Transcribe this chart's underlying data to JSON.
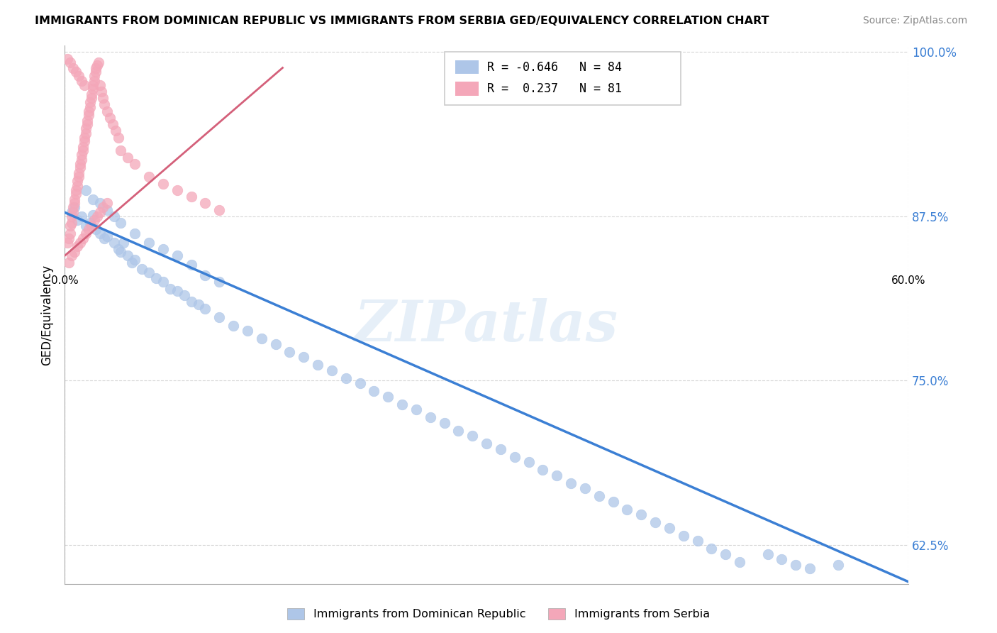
{
  "title": "IMMIGRANTS FROM DOMINICAN REPUBLIC VS IMMIGRANTS FROM SERBIA GED/EQUIVALENCY CORRELATION CHART",
  "source": "Source: ZipAtlas.com",
  "ylabel": "GED/Equivalency",
  "xmin": 0.0,
  "xmax": 0.6,
  "ymin": 0.595,
  "ymax": 1.005,
  "yticks": [
    0.625,
    0.75,
    0.875,
    1.0
  ],
  "ytick_labels": [
    "62.5%",
    "75.0%",
    "87.5%",
    "100.0%"
  ],
  "xtick_labels": [
    "0.0%",
    "60.0%"
  ],
  "blue_line_color": "#3b7fd4",
  "pink_line_color": "#d4607a",
  "blue_line_x": [
    0.0,
    0.6
  ],
  "blue_line_y": [
    0.878,
    0.597
  ],
  "pink_line_x": [
    0.0,
    0.155
  ],
  "pink_line_y": [
    0.845,
    0.988
  ],
  "watermark": "ZIPatlas",
  "blue_scatter_color": "#aec6e8",
  "pink_scatter_color": "#f4a7b9",
  "blue_scatter_x": [
    0.005,
    0.007,
    0.009,
    0.012,
    0.015,
    0.018,
    0.02,
    0.022,
    0.025,
    0.028,
    0.03,
    0.035,
    0.038,
    0.04,
    0.042,
    0.045,
    0.048,
    0.05,
    0.055,
    0.06,
    0.065,
    0.07,
    0.075,
    0.08,
    0.085,
    0.09,
    0.095,
    0.1,
    0.11,
    0.12,
    0.13,
    0.14,
    0.15,
    0.16,
    0.17,
    0.18,
    0.19,
    0.2,
    0.21,
    0.22,
    0.23,
    0.24,
    0.25,
    0.26,
    0.27,
    0.28,
    0.29,
    0.3,
    0.31,
    0.32,
    0.33,
    0.34,
    0.35,
    0.36,
    0.37,
    0.38,
    0.39,
    0.4,
    0.41,
    0.42,
    0.43,
    0.44,
    0.45,
    0.46,
    0.47,
    0.48,
    0.5,
    0.51,
    0.52,
    0.53,
    0.55,
    0.015,
    0.02,
    0.025,
    0.03,
    0.035,
    0.04,
    0.05,
    0.06,
    0.07,
    0.08,
    0.09,
    0.1,
    0.11
  ],
  "blue_scatter_y": [
    0.878,
    0.882,
    0.872,
    0.875,
    0.868,
    0.87,
    0.876,
    0.865,
    0.862,
    0.858,
    0.86,
    0.855,
    0.85,
    0.848,
    0.855,
    0.845,
    0.84,
    0.842,
    0.835,
    0.832,
    0.828,
    0.825,
    0.82,
    0.818,
    0.815,
    0.81,
    0.808,
    0.805,
    0.798,
    0.792,
    0.788,
    0.782,
    0.778,
    0.772,
    0.768,
    0.762,
    0.758,
    0.752,
    0.748,
    0.742,
    0.738,
    0.732,
    0.728,
    0.722,
    0.718,
    0.712,
    0.708,
    0.702,
    0.698,
    0.692,
    0.688,
    0.682,
    0.678,
    0.672,
    0.668,
    0.662,
    0.658,
    0.652,
    0.648,
    0.642,
    0.638,
    0.632,
    0.628,
    0.622,
    0.618,
    0.612,
    0.618,
    0.614,
    0.61,
    0.607,
    0.61,
    0.895,
    0.888,
    0.885,
    0.88,
    0.875,
    0.87,
    0.862,
    0.855,
    0.85,
    0.845,
    0.838,
    0.83,
    0.825
  ],
  "pink_scatter_x": [
    0.002,
    0.003,
    0.004,
    0.004,
    0.005,
    0.005,
    0.006,
    0.006,
    0.007,
    0.007,
    0.008,
    0.008,
    0.009,
    0.009,
    0.01,
    0.01,
    0.011,
    0.011,
    0.012,
    0.012,
    0.013,
    0.013,
    0.014,
    0.014,
    0.015,
    0.015,
    0.016,
    0.016,
    0.017,
    0.017,
    0.018,
    0.018,
    0.019,
    0.019,
    0.02,
    0.02,
    0.021,
    0.021,
    0.022,
    0.022,
    0.023,
    0.024,
    0.025,
    0.026,
    0.027,
    0.028,
    0.03,
    0.032,
    0.034,
    0.036,
    0.038,
    0.04,
    0.045,
    0.05,
    0.06,
    0.07,
    0.08,
    0.09,
    0.1,
    0.11,
    0.003,
    0.005,
    0.007,
    0.009,
    0.011,
    0.013,
    0.015,
    0.017,
    0.019,
    0.021,
    0.023,
    0.025,
    0.027,
    0.03,
    0.002,
    0.004,
    0.006,
    0.008,
    0.01,
    0.012,
    0.014
  ],
  "pink_scatter_y": [
    0.855,
    0.858,
    0.862,
    0.868,
    0.87,
    0.875,
    0.878,
    0.882,
    0.885,
    0.888,
    0.892,
    0.895,
    0.898,
    0.902,
    0.905,
    0.908,
    0.912,
    0.915,
    0.918,
    0.922,
    0.925,
    0.928,
    0.932,
    0.935,
    0.938,
    0.942,
    0.945,
    0.948,
    0.952,
    0.955,
    0.958,
    0.962,
    0.965,
    0.968,
    0.972,
    0.975,
    0.978,
    0.982,
    0.985,
    0.988,
    0.99,
    0.992,
    0.975,
    0.97,
    0.965,
    0.96,
    0.955,
    0.95,
    0.945,
    0.94,
    0.935,
    0.925,
    0.92,
    0.915,
    0.905,
    0.9,
    0.895,
    0.89,
    0.885,
    0.88,
    0.84,
    0.845,
    0.848,
    0.852,
    0.855,
    0.858,
    0.862,
    0.865,
    0.868,
    0.872,
    0.875,
    0.878,
    0.882,
    0.885,
    0.995,
    0.992,
    0.988,
    0.985,
    0.982,
    0.978,
    0.975
  ],
  "legend_blue_R": "-0.646",
  "legend_blue_N": "84",
  "legend_pink_R": " 0.237",
  "legend_pink_N": "81",
  "legend_label_blue": "Immigrants from Dominican Republic",
  "legend_label_pink": "Immigrants from Serbia"
}
